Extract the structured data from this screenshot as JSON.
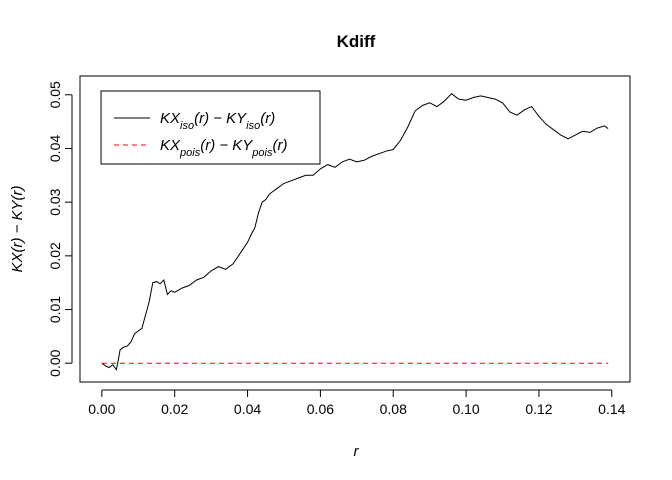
{
  "chart_data": {
    "type": "line",
    "title": "Kdiff",
    "xlabel": "r",
    "ylabel": "KX(r) − KY(r)",
    "xlim": [
      -0.006,
      0.145
    ],
    "ylim": [
      -0.0035,
      0.0535
    ],
    "x_ticks": [
      "0.00",
      "0.02",
      "0.04",
      "0.06",
      "0.08",
      "0.10",
      "0.12",
      "0.14"
    ],
    "y_ticks": [
      "0.00",
      "0.01",
      "0.02",
      "0.03",
      "0.04",
      "0.05"
    ],
    "x_tick_values": [
      0,
      0.02,
      0.04,
      0.06,
      0.08,
      0.1,
      0.12,
      0.14
    ],
    "y_tick_values": [
      0,
      0.01,
      0.02,
      0.03,
      0.04,
      0.05
    ],
    "legend_position": "top-left",
    "series": [
      {
        "name": "KX^iso(r) − KY^iso(r)",
        "legend_main": [
          "KX",
          "iso",
          "(r) − KY",
          "iso",
          "(r)"
        ],
        "color": "#000000",
        "dash": "solid",
        "x": [
          0,
          0.001,
          0.002,
          0.003,
          0.004,
          0.0045,
          0.005,
          0.006,
          0.007,
          0.008,
          0.009,
          0.01,
          0.011,
          0.012,
          0.013,
          0.014,
          0.015,
          0.016,
          0.017,
          0.018,
          0.019,
          0.02,
          0.022,
          0.024,
          0.026,
          0.028,
          0.03,
          0.032,
          0.034,
          0.036,
          0.038,
          0.04,
          0.041,
          0.042,
          0.043,
          0.044,
          0.045,
          0.046,
          0.047,
          0.048,
          0.05,
          0.052,
          0.054,
          0.056,
          0.058,
          0.06,
          0.062,
          0.064,
          0.066,
          0.068,
          0.07,
          0.072,
          0.074,
          0.076,
          0.078,
          0.08,
          0.082,
          0.084,
          0.086,
          0.088,
          0.09,
          0.092,
          0.094,
          0.096,
          0.098,
          0.1,
          0.102,
          0.104,
          0.106,
          0.108,
          0.11,
          0.112,
          0.114,
          0.116,
          0.118,
          0.12,
          0.122,
          0.124,
          0.126,
          0.128,
          0.13,
          0.132,
          0.134,
          0.136,
          0.138,
          0.139
        ],
        "y": [
          0,
          -0.0005,
          -0.0008,
          -0.0003,
          -0.0012,
          0.0005,
          0.0025,
          0.003,
          0.0032,
          0.004,
          0.0055,
          0.006,
          0.0065,
          0.009,
          0.0115,
          0.015,
          0.0152,
          0.0148,
          0.0155,
          0.0128,
          0.0135,
          0.0132,
          0.014,
          0.0145,
          0.0155,
          0.016,
          0.0172,
          0.018,
          0.0175,
          0.0185,
          0.0205,
          0.0225,
          0.024,
          0.0252,
          0.028,
          0.03,
          0.0305,
          0.0315,
          0.032,
          0.0325,
          0.0335,
          0.034,
          0.0345,
          0.035,
          0.035,
          0.0362,
          0.037,
          0.0365,
          0.0375,
          0.038,
          0.0375,
          0.0378,
          0.0385,
          0.039,
          0.0395,
          0.0398,
          0.0415,
          0.044,
          0.047,
          0.048,
          0.0485,
          0.0478,
          0.0488,
          0.0502,
          0.0492,
          0.049,
          0.0495,
          0.0498,
          0.0495,
          0.0492,
          0.0485,
          0.0468,
          0.0462,
          0.0472,
          0.0478,
          0.046,
          0.0445,
          0.0435,
          0.0425,
          0.0418,
          0.0425,
          0.0432,
          0.043,
          0.0438,
          0.0442,
          0.0437
        ]
      },
      {
        "name": "KXpois(r) − KYpois(r)",
        "legend_main": [
          "KX",
          "pois",
          "(r) − KY",
          "pois",
          "(r)"
        ],
        "color": "#ff0000",
        "dash": "dashed",
        "x": [
          0,
          0.139
        ],
        "y": [
          0,
          0
        ]
      }
    ]
  }
}
